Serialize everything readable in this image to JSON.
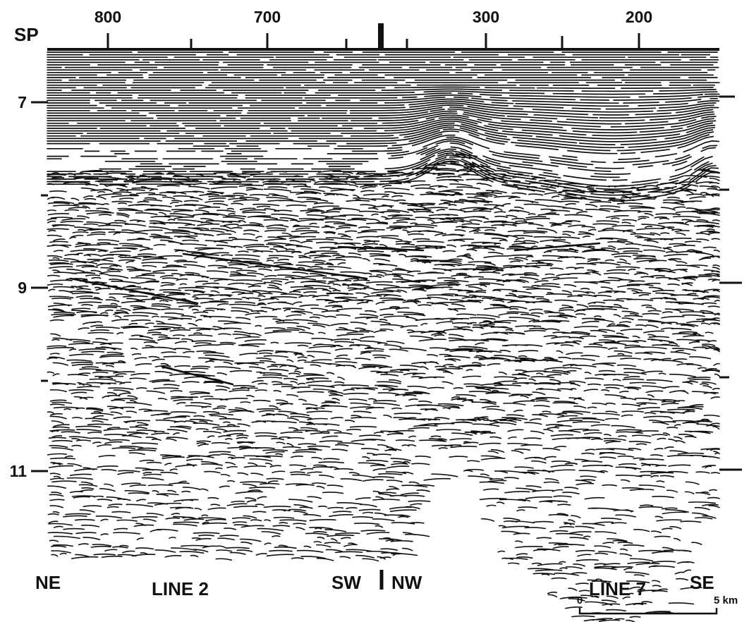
{
  "axis_top": {
    "label": "SP",
    "ticks": [
      "800",
      "700",
      "300",
      "200"
    ]
  },
  "axis_left": {
    "ticks": [
      "7",
      "9",
      "11"
    ]
  },
  "labels": {
    "left_end": "NE",
    "line_2": "LINE 2",
    "sw": "SW",
    "nw": "NW",
    "line_7": "LINE 7",
    "right_end": "SE"
  },
  "scale_bar": {
    "start": "0",
    "end": "5 km"
  }
}
